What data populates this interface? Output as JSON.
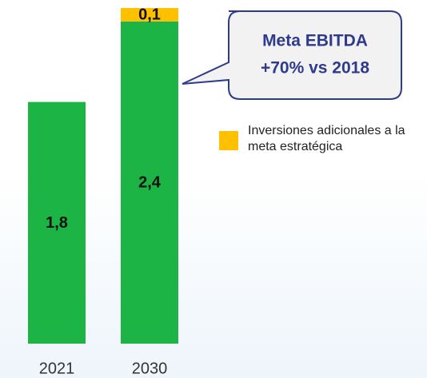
{
  "chart_data": {
    "type": "stacked_bar",
    "categories": [
      "2021",
      "2030"
    ],
    "series": [
      {
        "color": "#1db446",
        "values": [
          1.8,
          2.4
        ],
        "value_labels": [
          "1,8",
          "2,4"
        ]
      },
      {
        "name": "Inversiones adicionales a la meta estratégica",
        "color": "#ffc000",
        "values": [
          null,
          0.1
        ],
        "value_labels": [
          null,
          "0,1"
        ]
      }
    ],
    "ylim": [
      0,
      2.5
    ],
    "annotation": {
      "lines": [
        "Meta EBITDA",
        "+70% vs 2018"
      ],
      "color": "#2e3a8c"
    }
  }
}
